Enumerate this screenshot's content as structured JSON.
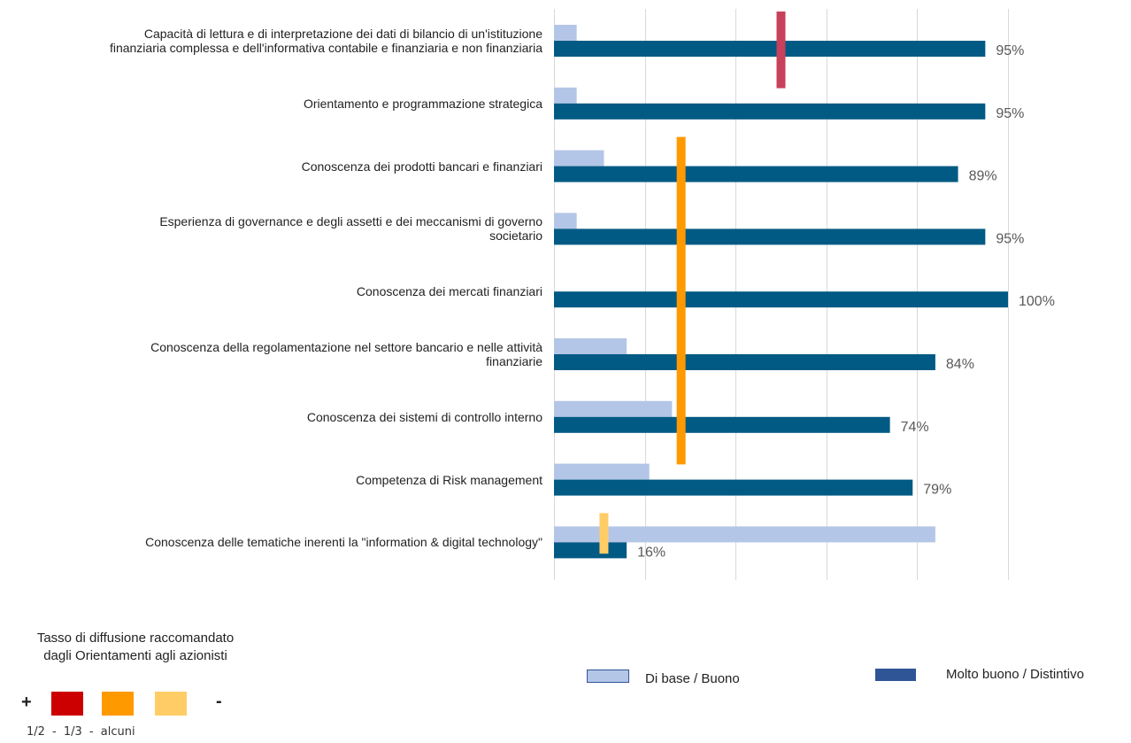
{
  "chart_data": {
    "type": "bar",
    "orientation": "horizontal",
    "categories": [
      "Capacità di lettura e di interpretazione dei dati di bilancio di un'istituzione finanziaria complessa e dell'informativa contabile e finanziaria e non finanziaria",
      "Orientamento e programmazione strategica",
      "Conoscenza dei prodotti bancari e finanziari",
      "Esperienza di governance e degli assetti e dei meccanismi di governo societario",
      "Conoscenza dei mercati finanziari",
      "Conoscenza della regolamentazione nel settore bancario e nelle attività finanziarie",
      "Conoscenza dei sistemi di controllo interno",
      "Competenza di Risk management",
      "Conoscenza delle tematiche inerenti la \"information & digital technology\""
    ],
    "category_lines": [
      [
        "Capacità di lettura e di interpretazione dei dati di bilancio di un'istituzione",
        "finanziaria complessa e dell'informativa contabile e finanziaria e non finanziaria"
      ],
      [
        "Orientamento e programmazione strategica"
      ],
      [
        "Conoscenza dei prodotti bancari e finanziari"
      ],
      [
        "Esperienza di governance e degli assetti e dei meccanismi di governo",
        "societario"
      ],
      [
        "Conoscenza dei mercati finanziari"
      ],
      [
        "Conoscenza della regolamentazione nel settore bancario e nelle attività",
        "finanziarie"
      ],
      [
        "Conoscenza dei sistemi di controllo interno"
      ],
      [
        "Competenza di Risk management"
      ],
      [
        "Conoscenza delle tematiche inerenti la \"information & digital technology\""
      ]
    ],
    "series": [
      {
        "name": "Di base / Buono",
        "color": "#b4c6e7",
        "values": [
          5,
          5,
          11,
          5,
          0,
          16,
          26,
          21,
          84
        ]
      },
      {
        "name": "Molto buono / Distintivo",
        "color": "#005a84",
        "values": [
          95,
          95,
          89,
          95,
          100,
          84,
          74,
          79,
          16
        ]
      }
    ],
    "data_labels": [
      "95%",
      "95%",
      "89%",
      "95%",
      "100%",
      "84%",
      "74%",
      "79%",
      "16%"
    ],
    "xlim": [
      0,
      100
    ],
    "grid": true,
    "reference_markers": [
      {
        "level": "1/2",
        "value": 50,
        "color": "#c8405a",
        "from_category": 0,
        "to_category": 1
      },
      {
        "level": "1/3",
        "value": 28,
        "color": "#ff9900",
        "from_category": 2,
        "to_category": 7
      },
      {
        "level": "alcuni",
        "value": 11,
        "color": "#ffcc66",
        "from_category": 8,
        "to_category": 8
      }
    ],
    "legend_position": "bottom-right"
  },
  "legend": {
    "items": [
      {
        "label": "Di base / Buono",
        "color": "#b4c6e7"
      },
      {
        "label": "Molto buono / Distintivo",
        "color": "#2f5597"
      }
    ]
  },
  "key": {
    "title_line1": "Tasso di diffusione raccomandato",
    "title_line2": "dagli Orientamenti agli azionisti",
    "plus": "+",
    "minus": "-",
    "colors": [
      "#cc0000",
      "#ff9900",
      "#ffcc66"
    ],
    "fractions": "1/2 - 1/3 - alcuni"
  }
}
